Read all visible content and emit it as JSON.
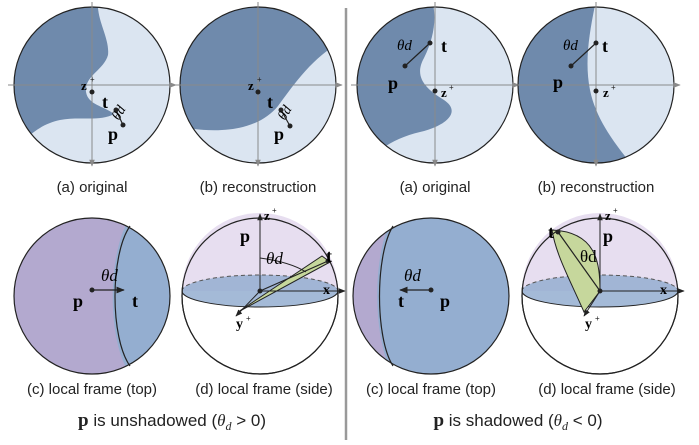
{
  "colors": {
    "dark": "#6f8aac",
    "light": "#dbe5f1",
    "mid_blue": "#94aed0",
    "lavender": "#b3a9cf",
    "top_light": "#e7def0",
    "green": "#c6d79c",
    "axis": "#8a8a8a",
    "outline": "#222222",
    "divider": "#999999"
  },
  "symbols": {
    "p": "p",
    "t": "t",
    "z": "z",
    "x": "x",
    "y": "y",
    "z_sup": "+",
    "y_sup": "+",
    "theta_label": "θd"
  },
  "left": {
    "captions": {
      "a": "(a) original",
      "b": "(b) reconstruction",
      "c": "(c) local frame (top)",
      "d": "(d) local frame (side)"
    },
    "footer": {
      "bold_p": "p",
      "text": " is unshadowed (",
      "theta": "θ",
      "sub": "d",
      "cond": " > 0)"
    }
  },
  "right": {
    "captions": {
      "a": "(a) original",
      "b": "(b) reconstruction",
      "c": "(c) local frame (top)",
      "d": "(d) local frame (side)"
    },
    "footer": {
      "bold_p": "p",
      "text": " is shadowed (",
      "theta": "θ",
      "sub": "d",
      "cond": " < 0)"
    }
  }
}
